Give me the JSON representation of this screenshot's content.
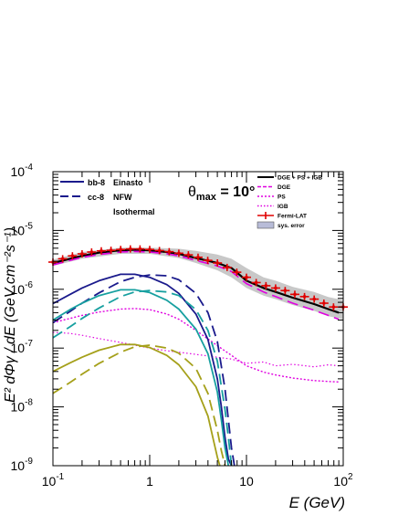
{
  "chart_data": {
    "type": "line",
    "annotation": "θmax = 10°",
    "annotation_main": "θ",
    "annotation_sub": "max",
    "annotation_rest": " = 10°",
    "xlabel": "E (GeV)",
    "ylabel": "E² dΦγ / dE (GeV cm⁻²s⁻¹)",
    "xscale": "log",
    "yscale": "log",
    "xlim": [
      0.1,
      100
    ],
    "ylim": [
      1e-09,
      0.0001
    ],
    "x_ticks": [
      {
        "value": 0.1,
        "base": "10",
        "exp": "-1"
      },
      {
        "value": 1,
        "base": "1",
        "exp": ""
      },
      {
        "value": 10,
        "base": "10",
        "exp": ""
      },
      {
        "value": 100,
        "base": "10",
        "exp": "2"
      }
    ],
    "y_ticks": [
      {
        "value": 1e-09,
        "base": "10",
        "exp": "-9"
      },
      {
        "value": 1e-08,
        "base": "10",
        "exp": "-8"
      },
      {
        "value": 1e-07,
        "base": "10",
        "exp": "-7"
      },
      {
        "value": 1e-06,
        "base": "10",
        "exp": "-6"
      },
      {
        "value": 1e-05,
        "base": "10",
        "exp": "-5"
      },
      {
        "value": 0.0001,
        "base": "10",
        "exp": "-4"
      }
    ],
    "left_legend": {
      "styles": [
        {
          "label": "bb-8",
          "dash": "solid"
        },
        {
          "label": "cc-8",
          "dash": "dashed"
        }
      ],
      "profiles": [
        {
          "label": "Einasto",
          "color": "#1a1a8c"
        },
        {
          "label": "NFW",
          "color": "#17a0a0"
        },
        {
          "label": "Isothermal",
          "color": "#a5a01a"
        }
      ]
    },
    "right_legend": [
      {
        "label": "DGE + PS + IGB",
        "kind": "line",
        "color": "#000000",
        "dash": "solid"
      },
      {
        "label": "DGE",
        "kind": "line",
        "color": "#e000e0",
        "dash": "dashed"
      },
      {
        "label": "PS",
        "kind": "line",
        "color": "#e000e0",
        "dash": "dashed-fine"
      },
      {
        "label": "IGB",
        "kind": "line",
        "color": "#e000e0",
        "dash": "dotted"
      },
      {
        "label": "Fermi-LAT",
        "kind": "errorbar",
        "color": "#e00000"
      },
      {
        "label": "sys. error",
        "kind": "box",
        "color": "#b8bcd8"
      }
    ],
    "series": [
      {
        "name": "DGE + PS + IGB",
        "color": "#000000",
        "dash": "solid",
        "width": 2.2,
        "x": [
          0.1,
          0.15,
          0.2,
          0.3,
          0.5,
          0.7,
          1,
          1.5,
          2,
          3,
          5,
          7,
          10,
          15,
          20,
          30,
          50,
          70,
          90
        ],
        "y": [
          2.8e-06,
          3.3e-06,
          3.7e-06,
          4.2e-06,
          4.6e-06,
          4.7e-06,
          4.6e-06,
          4.3e-06,
          4e-06,
          3.4e-06,
          2.8e-06,
          2.3e-06,
          1.4e-06,
          1.05e-06,
          9e-07,
          7.2e-07,
          5.6e-07,
          4.6e-07,
          4e-07
        ]
      },
      {
        "name": "DGE",
        "color": "#e000e0",
        "dash": "dashed",
        "width": 1.6,
        "x": [
          0.1,
          0.15,
          0.2,
          0.3,
          0.5,
          0.7,
          1,
          1.5,
          2,
          3,
          5,
          7,
          10,
          15,
          20,
          30,
          50,
          70,
          90
        ],
        "y": [
          2.6e-06,
          3.1e-06,
          3.5e-06,
          3.9e-06,
          4.3e-06,
          4.4e-06,
          4.3e-06,
          4e-06,
          3.7e-06,
          3.1e-06,
          2.5e-06,
          2e-06,
          1.25e-06,
          9e-07,
          7.5e-07,
          5.8e-07,
          4.4e-07,
          3.6e-07,
          3.1e-07
        ]
      },
      {
        "name": "PS",
        "color": "#e000e0",
        "dash": "dotted-dense",
        "width": 1.4,
        "x": [
          0.1,
          0.15,
          0.2,
          0.3,
          0.5,
          0.7,
          1,
          1.5,
          2,
          3,
          5,
          7,
          10,
          15,
          20,
          30,
          50,
          70,
          90
        ],
        "y": [
          2.7e-07,
          3.2e-07,
          3.6e-07,
          4.1e-07,
          4.6e-07,
          4.7e-07,
          4.5e-07,
          3.8e-07,
          3.1e-07,
          2e-07,
          1.1e-07,
          7.5e-08,
          5e-08,
          3.9e-08,
          3.5e-08,
          3.1e-08,
          2.8e-08,
          2.7e-08,
          2.65e-08
        ]
      },
      {
        "name": "IGB",
        "color": "#e000e0",
        "dash": "dotted",
        "width": 1.2,
        "x": [
          0.1,
          0.15,
          0.2,
          0.3,
          0.5,
          0.7,
          1,
          1.5,
          2,
          3,
          5,
          7,
          10,
          15,
          20,
          30,
          50,
          70,
          90
        ],
        "y": [
          1.85e-07,
          1.78e-07,
          1.65e-07,
          1.45e-07,
          1.25e-07,
          1.12e-07,
          1e-07,
          9e-08,
          8.5e-08,
          7.8e-08,
          7e-08,
          6.5e-08,
          5.5e-08,
          5.8e-08,
          5e-08,
          5.3e-08,
          4.8e-08,
          5.2e-08,
          5e-08
        ]
      },
      {
        "name": "bb-8 Einasto",
        "color": "#1a1a8c",
        "dash": "solid",
        "width": 1.8,
        "x": [
          0.1,
          0.15,
          0.2,
          0.3,
          0.5,
          0.7,
          1,
          1.5,
          2,
          3,
          4,
          5,
          5.5,
          6,
          6.5,
          7
        ],
        "y": [
          5.7e-07,
          8.2e-07,
          1.05e-06,
          1.4e-06,
          1.8e-06,
          1.8e-06,
          1.6e-06,
          1.2e-06,
          8.5e-07,
          3.8e-07,
          1.4e-07,
          3e-08,
          1e-08,
          3e-09,
          1.3e-09,
          1e-09
        ]
      },
      {
        "name": "cc-8 Einasto",
        "color": "#1a1a8c",
        "dash": "dashed",
        "width": 1.8,
        "x": [
          0.1,
          0.15,
          0.2,
          0.3,
          0.5,
          0.7,
          1,
          1.5,
          2,
          3,
          4,
          5,
          6,
          6.5,
          7,
          7.5
        ],
        "y": [
          2.7e-07,
          4.2e-07,
          5.8e-07,
          8.7e-07,
          1.35e-06,
          1.6e-06,
          1.75e-06,
          1.7e-06,
          1.45e-06,
          8.5e-07,
          4e-07,
          1.3e-07,
          2e-08,
          6e-09,
          2e-09,
          1e-09
        ]
      },
      {
        "name": "bb-8 NFW",
        "color": "#17a0a0",
        "dash": "solid",
        "width": 1.8,
        "x": [
          0.1,
          0.15,
          0.2,
          0.3,
          0.5,
          0.7,
          1,
          1.5,
          2,
          3,
          4,
          5,
          5.5,
          6,
          6.5
        ],
        "y": [
          3e-07,
          4.5e-07,
          5.8e-07,
          7.8e-07,
          9.8e-07,
          9.8e-07,
          8.8e-07,
          6.5e-07,
          4.6e-07,
          2.1e-07,
          8e-08,
          1.8e-08,
          6e-09,
          2e-09,
          1e-09
        ]
      },
      {
        "name": "cc-8 NFW",
        "color": "#17a0a0",
        "dash": "dashed",
        "width": 1.8,
        "x": [
          0.1,
          0.15,
          0.2,
          0.3,
          0.5,
          0.7,
          1,
          1.5,
          2,
          3,
          4,
          5,
          6,
          6.5,
          7
        ],
        "y": [
          1.5e-07,
          2.3e-07,
          3.2e-07,
          4.8e-07,
          7.5e-07,
          9e-07,
          9.5e-07,
          9e-07,
          7.8e-07,
          4.5e-07,
          2e-07,
          6e-08,
          9e-09,
          3e-09,
          1e-09
        ]
      },
      {
        "name": "bb-8 Isothermal",
        "color": "#a5a01a",
        "dash": "solid",
        "width": 1.8,
        "x": [
          0.1,
          0.15,
          0.2,
          0.3,
          0.5,
          0.7,
          1,
          1.5,
          2,
          3,
          4,
          4.5,
          5,
          5.3
        ],
        "y": [
          4e-08,
          5.6e-08,
          7e-08,
          9.2e-08,
          1.15e-07,
          1.15e-07,
          1.02e-07,
          7.5e-08,
          5.2e-08,
          2.2e-08,
          7e-09,
          3e-09,
          1.4e-09,
          1e-09
        ]
      },
      {
        "name": "cc-8 Isothermal",
        "color": "#a5a01a",
        "dash": "dashed",
        "width": 1.8,
        "x": [
          0.1,
          0.15,
          0.2,
          0.3,
          0.5,
          0.7,
          1,
          1.5,
          2,
          3,
          4,
          5,
          5.5,
          6
        ],
        "y": [
          1.7e-08,
          2.6e-08,
          3.6e-08,
          5.5e-08,
          8.5e-08,
          1.05e-07,
          1.12e-07,
          1e-07,
          8.2e-08,
          4.5e-08,
          1.7e-08,
          4e-09,
          1.8e-09,
          1e-09
        ]
      }
    ],
    "fermi_points": {
      "x": [
        0.1,
        0.126,
        0.159,
        0.2,
        0.251,
        0.316,
        0.398,
        0.501,
        0.631,
        0.794,
        1.0,
        1.26,
        1.59,
        2.0,
        2.51,
        3.16,
        3.98,
        5.01,
        6.31,
        7.94,
        10.0,
        12.6,
        15.9,
        20.0,
        25.1,
        31.6,
        39.8,
        50.1,
        63.1,
        79.4,
        100
      ],
      "y": [
        2.9e-06,
        3.3e-06,
        3.7e-06,
        4e-06,
        4.3e-06,
        4.5e-06,
        4.6e-06,
        4.75e-06,
        4.85e-06,
        4.85e-06,
        4.75e-06,
        4.55e-06,
        4.35e-06,
        4.1e-06,
        3.85e-06,
        3.5e-06,
        3.1e-06,
        2.8e-06,
        2.35e-06,
        1.95e-06,
        1.6e-06,
        1.3e-06,
        1.15e-06,
        1.05e-06,
        9.5e-07,
        8.2e-07,
        7.5e-07,
        6.8e-07,
        5.8e-07,
        5e-07,
        5e-07
      ]
    },
    "sys_band": {
      "x": [
        0.1,
        0.2,
        0.5,
        1,
        2,
        3,
        5,
        7,
        10,
        15,
        20,
        30,
        50,
        70,
        100
      ],
      "lower": [
        2.5e-06,
        3.3e-06,
        4e-06,
        4e-06,
        3.4e-06,
        2.8e-06,
        2.1e-06,
        1.6e-06,
        1.05e-06,
        7.8e-07,
        6.8e-07,
        5.4e-07,
        4.3e-07,
        3.5e-07,
        3.1e-07
      ],
      "upper": [
        3.2e-06,
        4.3e-06,
        5.1e-06,
        5.1e-06,
        4.9e-06,
        4.5e-06,
        3.9e-06,
        3.3e-06,
        2.3e-06,
        1.6e-06,
        1.4e-06,
        1.1e-06,
        9e-07,
        7.4e-07,
        6.5e-07
      ]
    }
  }
}
